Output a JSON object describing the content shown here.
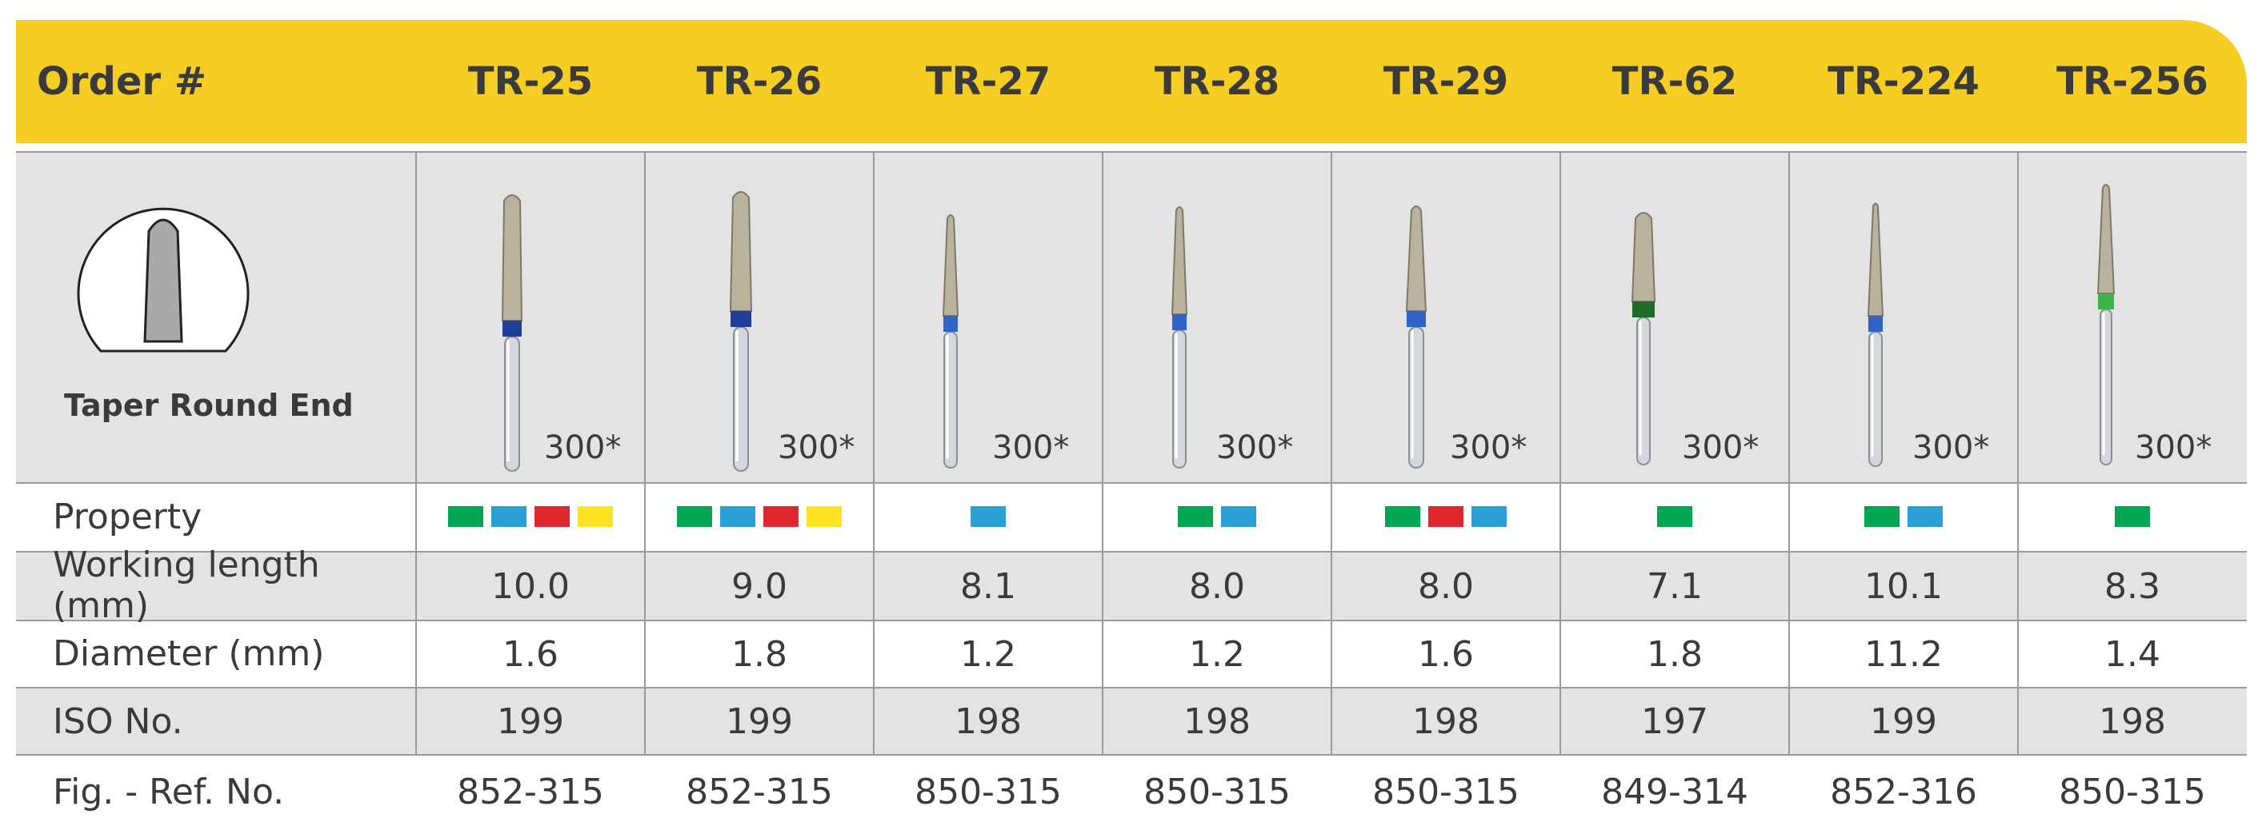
{
  "header": {
    "order_label": "Order #",
    "codes": [
      "TR-25",
      "TR-26",
      "TR-27",
      "TR-28",
      "TR-29",
      "TR-62",
      "TR-224",
      "TR-256"
    ]
  },
  "shape": {
    "caption": "Taper Round End",
    "icon": "taper-round-end-icon"
  },
  "image_row": {
    "note": "300*",
    "band_colors": [
      "#1F3F9A",
      "#1F3F9A",
      "#2F63C8",
      "#2F63C8",
      "#2F63C8",
      "#1E6B2A",
      "#2F63C8",
      "#3BB54A"
    ]
  },
  "rows": {
    "property_label": "Property",
    "working_length_label": "Working length (mm)",
    "diameter_label": "Diameter (mm)",
    "iso_label": "ISO No.",
    "ref_label": "Fig. - Ref. No."
  },
  "property_colors": {
    "green": "#00A651",
    "blue": "#2A9FD8",
    "red": "#E0262E",
    "yellow": "#FFE425"
  },
  "products": [
    {
      "code": "TR-25",
      "properties": [
        "green",
        "blue",
        "red",
        "yellow"
      ],
      "working_length": "10.0",
      "diameter": "1.6",
      "iso": "199",
      "ref": "852-315"
    },
    {
      "code": "TR-26",
      "properties": [
        "green",
        "blue",
        "red",
        "yellow"
      ],
      "working_length": "9.0",
      "diameter": "1.8",
      "iso": "199",
      "ref": "852-315"
    },
    {
      "code": "TR-27",
      "properties": [
        "blue"
      ],
      "working_length": "8.1",
      "diameter": "1.2",
      "iso": "198",
      "ref": "850-315"
    },
    {
      "code": "TR-28",
      "properties": [
        "green",
        "blue"
      ],
      "working_length": "8.0",
      "diameter": "1.2",
      "iso": "198",
      "ref": "850-315"
    },
    {
      "code": "TR-29",
      "properties": [
        "green",
        "red",
        "blue"
      ],
      "working_length": "8.0",
      "diameter": "1.6",
      "iso": "198",
      "ref": "850-315"
    },
    {
      "code": "TR-62",
      "properties": [
        "green"
      ],
      "working_length": "7.1",
      "diameter": "1.8",
      "iso": "197",
      "ref": "849-314"
    },
    {
      "code": "TR-224",
      "properties": [
        "green",
        "blue"
      ],
      "working_length": "10.1",
      "diameter": "11.2",
      "iso": "199",
      "ref": "852-316"
    },
    {
      "code": "TR-256",
      "properties": [
        "green"
      ],
      "working_length": "8.3",
      "diameter": "1.4",
      "iso": "198",
      "ref": "850-315"
    }
  ]
}
